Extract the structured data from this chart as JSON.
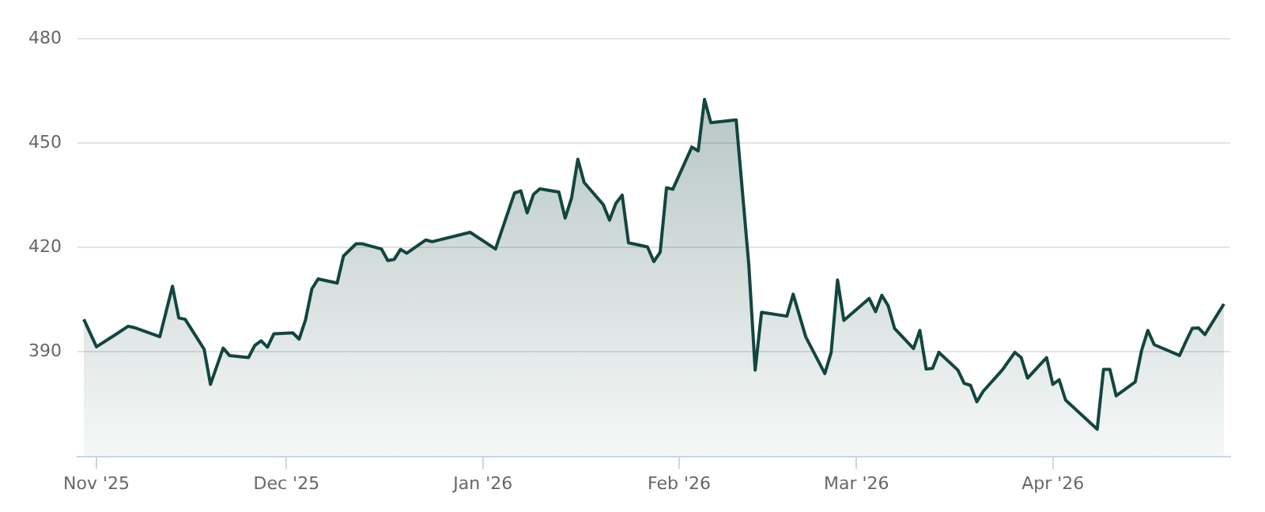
{
  "chart_data": {
    "type": "area",
    "x": [
      "2025-10-30",
      "2025-11-01",
      "2025-11-04",
      "2025-11-06",
      "2025-11-07",
      "2025-11-11",
      "2025-11-13",
      "2025-11-14",
      "2025-11-15",
      "2025-11-18",
      "2025-11-19",
      "2025-11-21",
      "2025-11-22",
      "2025-11-25",
      "2025-11-26",
      "2025-11-27",
      "2025-11-28",
      "2025-11-29",
      "2025-12-02",
      "2025-12-03",
      "2025-12-04",
      "2025-12-05",
      "2025-12-06",
      "2025-12-09",
      "2025-12-10",
      "2025-12-12",
      "2025-12-13",
      "2025-12-16",
      "2025-12-17",
      "2025-12-18",
      "2025-12-19",
      "2025-12-20",
      "2025-12-23",
      "2025-12-24",
      "2025-12-30",
      "2026-01-03",
      "2026-01-06",
      "2026-01-07",
      "2026-01-08",
      "2026-01-09",
      "2026-01-10",
      "2026-01-13",
      "2026-01-14",
      "2026-01-15",
      "2026-01-16",
      "2026-01-17",
      "2026-01-20",
      "2026-01-21",
      "2026-01-22",
      "2026-01-23",
      "2026-01-24",
      "2026-01-27",
      "2026-01-28",
      "2026-01-29",
      "2026-01-30",
      "2026-01-31",
      "2026-02-03",
      "2026-02-04",
      "2026-02-05",
      "2026-02-06",
      "2026-02-10",
      "2026-02-12",
      "2026-02-13",
      "2026-02-14",
      "2026-02-18",
      "2026-02-19",
      "2026-02-21",
      "2026-02-24",
      "2026-02-25",
      "2026-02-26",
      "2026-02-27",
      "2026-03-03",
      "2026-03-04",
      "2026-03-05",
      "2026-03-06",
      "2026-03-07",
      "2026-03-10",
      "2026-03-11",
      "2026-03-12",
      "2026-03-13",
      "2026-03-14",
      "2026-03-17",
      "2026-03-18",
      "2026-03-19",
      "2026-03-20",
      "2026-03-21",
      "2026-03-24",
      "2026-03-26",
      "2026-03-27",
      "2026-03-28",
      "2026-03-31",
      "2026-04-01",
      "2026-04-02",
      "2026-04-03",
      "2026-04-08",
      "2026-04-09",
      "2026-04-10",
      "2026-04-11",
      "2026-04-14",
      "2026-04-15",
      "2026-04-16",
      "2026-04-17",
      "2026-04-21",
      "2026-04-22",
      "2026-04-23",
      "2026-04-24",
      "2026-04-25",
      "2026-04-28"
    ],
    "series": [
      {
        "color": "#12463f",
        "values": [
          399.4,
          391.5,
          395.0,
          397.4,
          397.0,
          394.4,
          408.9,
          399.8,
          399.4,
          390.8,
          380.7,
          391.1,
          389.0,
          388.4,
          391.9,
          393.2,
          391.4,
          395.2,
          395.5,
          393.7,
          399.2,
          408.1,
          411.0,
          409.8,
          417.6,
          421.1,
          421.1,
          419.6,
          416.3,
          416.6,
          419.5,
          418.4,
          422.2,
          421.7,
          424.4,
          419.6,
          435.7,
          436.3,
          430.0,
          435.3,
          436.9,
          436.0,
          428.5,
          434.2,
          445.4,
          438.7,
          432.4,
          427.9,
          432.7,
          435.1,
          421.4,
          420.2,
          416.0,
          418.7,
          437.2,
          436.8,
          448.9,
          447.8,
          462.6,
          455.9,
          456.7,
          414.9,
          384.8,
          401.4,
          400.3,
          406.6,
          394.3,
          383.8,
          389.9,
          410.7,
          399.1,
          405.4,
          401.6,
          406.3,
          403.3,
          396.8,
          391.0,
          396.2,
          385.1,
          385.3,
          389.9,
          384.8,
          381.0,
          380.4,
          375.7,
          378.7,
          384.8,
          389.9,
          388.4,
          382.5,
          388.4,
          380.7,
          382.0,
          376.2,
          367.8,
          385.0,
          385.0,
          377.4,
          381.4,
          390.4,
          396.2,
          392.1,
          389.0,
          393.0,
          396.8,
          396.9,
          395.0,
          403.8
        ]
      }
    ],
    "xlim": [
      "2025-10-29",
      "2026-04-29"
    ],
    "xticks": [
      {
        "value": "2025-11-01",
        "label": "Nov '25"
      },
      {
        "value": "2025-12-01",
        "label": "Dec '25"
      },
      {
        "value": "2026-01-01",
        "label": "Jan '26"
      },
      {
        "value": "2026-02-01",
        "label": "Feb '26"
      },
      {
        "value": "2026-03-01",
        "label": "Mar '26"
      },
      {
        "value": "2026-04-01",
        "label": "Apr '26"
      }
    ],
    "ylim": [
      360,
      480
    ],
    "yticks": [
      390,
      420,
      450,
      480
    ],
    "grid": "y",
    "legend": false,
    "marker": "none"
  }
}
